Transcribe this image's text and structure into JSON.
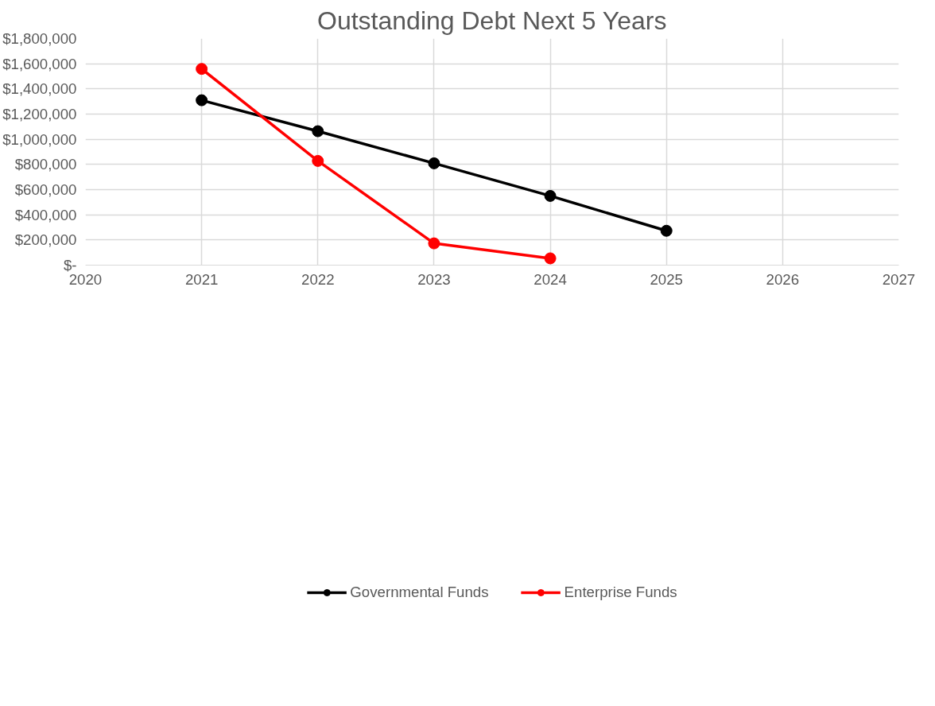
{
  "chart_data": {
    "type": "line",
    "title": "Outstanding Debt Next 5 Years",
    "x": [
      2021,
      2022,
      2023,
      2024,
      2025
    ],
    "series": [
      {
        "name": "Governmental Funds",
        "color": "#000000",
        "values": [
          1310000,
          1064000,
          809000,
          550000,
          273000
        ]
      },
      {
        "name": "Enterprise Funds",
        "color": "#ff0000",
        "x": [
          2021,
          2022,
          2023,
          2024
        ],
        "values": [
          1559000,
          828000,
          173000,
          54000
        ]
      }
    ],
    "xlim": [
      2020,
      2027
    ],
    "xticks": [
      2020,
      2021,
      2022,
      2023,
      2024,
      2025,
      2026,
      2027
    ],
    "ylim": [
      0,
      1800000
    ],
    "yticks": [
      {
        "value": 0,
        "label": "$-"
      },
      {
        "value": 200000,
        "label": "$200,000"
      },
      {
        "value": 400000,
        "label": "$400,000"
      },
      {
        "value": 600000,
        "label": "$600,000"
      },
      {
        "value": 800000,
        "label": "$800,000"
      },
      {
        "value": 1000000,
        "label": "$1,000,000"
      },
      {
        "value": 1200000,
        "label": "$1,200,000"
      },
      {
        "value": 1400000,
        "label": "$1,400,000"
      },
      {
        "value": 1600000,
        "label": "$1,600,000"
      },
      {
        "value": 1800000,
        "label": "$1,800,000"
      }
    ],
    "grid": true,
    "legend": "bottom",
    "marker": "circle",
    "line_style": "solid"
  }
}
